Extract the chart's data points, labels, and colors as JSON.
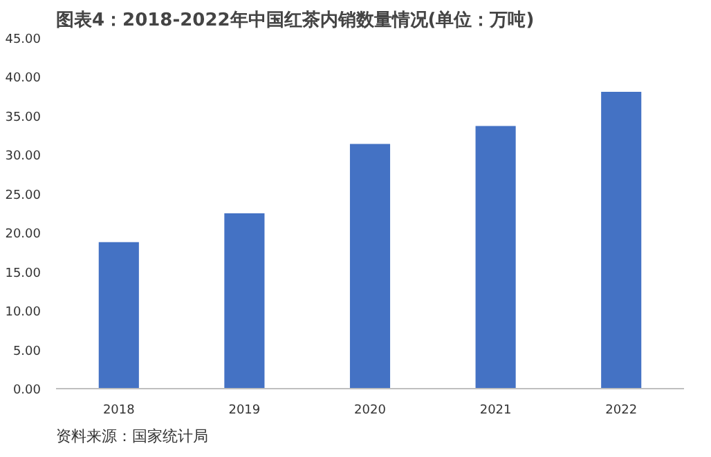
{
  "chart_data": {
    "type": "bar",
    "title": "图表4：2018-2022年中国红茶内销数量情况(单位：万吨)",
    "categories": [
      "2018",
      "2019",
      "2020",
      "2021",
      "2022"
    ],
    "values": [
      18.8,
      22.5,
      31.4,
      33.7,
      38.1
    ],
    "color": "#4472c4",
    "ylim": [
      0,
      45
    ],
    "yticks": [
      {
        "value": 0,
        "label": "0.00"
      },
      {
        "value": 5,
        "label": "5.00"
      },
      {
        "value": 10,
        "label": "10.00"
      },
      {
        "value": 15,
        "label": "15.00"
      },
      {
        "value": 20,
        "label": "20.00"
      },
      {
        "value": 25,
        "label": "25.00"
      },
      {
        "value": 30,
        "label": "30.00"
      },
      {
        "value": 35,
        "label": "35.00"
      },
      {
        "value": 40,
        "label": "40.00"
      },
      {
        "value": 45,
        "label": "45.00"
      }
    ],
    "grid": false,
    "annotations": [
      "资料来源：国家统计局"
    ]
  }
}
